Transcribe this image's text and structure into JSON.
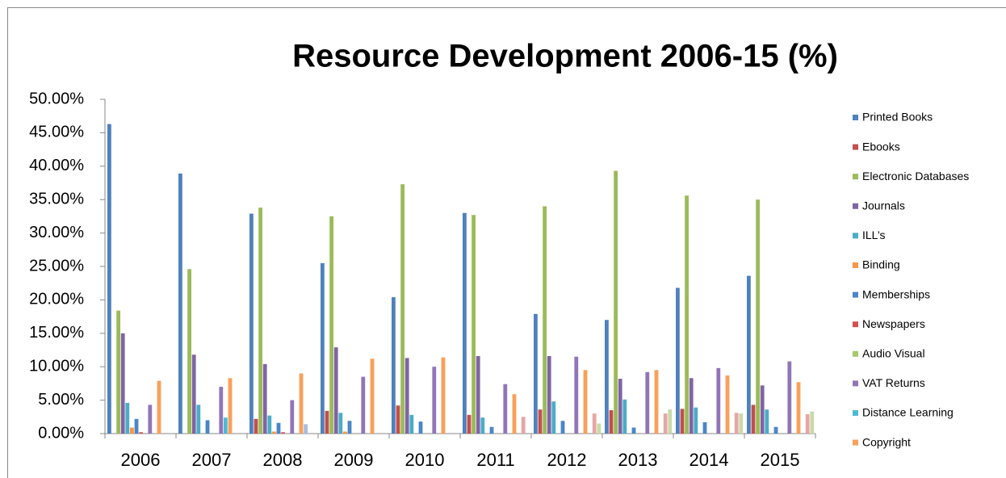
{
  "chart_data": {
    "type": "bar",
    "title": "Resource Development 2006-15 (%)",
    "categories": [
      "2006",
      "2007",
      "2008",
      "2009",
      "2010",
      "2011",
      "2012",
      "2013",
      "2014",
      "2015"
    ],
    "series": [
      {
        "name": "Printed Books",
        "color": "#4f81bd",
        "values": [
          46.3,
          38.9,
          32.9,
          25.5,
          20.4,
          33.0,
          17.9,
          17.0,
          21.8,
          23.6
        ]
      },
      {
        "name": "Ebooks",
        "color": "#c0504d",
        "values": [
          0,
          0,
          2.2,
          3.4,
          4.2,
          2.8,
          3.6,
          3.5,
          3.7,
          4.3
        ]
      },
      {
        "name": "Electronic Databases",
        "color": "#9bbb59",
        "values": [
          18.4,
          24.6,
          33.8,
          32.5,
          37.3,
          32.7,
          34.0,
          39.3,
          35.6,
          35.0
        ]
      },
      {
        "name": "Journals",
        "color": "#8064a2",
        "values": [
          15.0,
          11.8,
          10.4,
          12.9,
          11.3,
          11.6,
          11.6,
          8.2,
          8.3,
          7.2
        ]
      },
      {
        "name": "ILL’s",
        "color": "#4bacc6",
        "values": [
          4.6,
          4.3,
          2.7,
          3.1,
          2.8,
          2.4,
          4.8,
          5.1,
          3.9,
          3.6
        ]
      },
      {
        "name": "Binding",
        "color": "#f79646",
        "values": [
          0.9,
          0,
          0.3,
          0.3,
          0,
          0,
          0,
          0,
          0,
          0
        ]
      },
      {
        "name": "Memberships",
        "color": "#4a86c8",
        "values": [
          2.2,
          2.0,
          1.6,
          1.9,
          1.8,
          1.0,
          1.9,
          0.9,
          1.7,
          1.0
        ]
      },
      {
        "name": "Newspapers",
        "color": "#d0514e",
        "values": [
          0.2,
          0,
          0.2,
          0,
          0,
          0,
          0,
          0,
          0,
          0
        ]
      },
      {
        "name": "Audio Visual",
        "color": "#a5c96b",
        "values": [
          0,
          0,
          0,
          0,
          0,
          0,
          0,
          0,
          0,
          0
        ]
      },
      {
        "name": "VAT Returns",
        "color": "#9076b8",
        "values": [
          4.3,
          7.0,
          5.0,
          8.5,
          10.0,
          7.4,
          11.5,
          9.2,
          9.8,
          10.8
        ]
      },
      {
        "name": "Distance Learning",
        "color": "#4fbad6",
        "values": [
          0,
          2.4,
          0,
          0,
          0,
          0,
          0,
          0,
          0,
          0
        ]
      },
      {
        "name": "Copyright",
        "color": "#f9a05a",
        "values": [
          7.9,
          8.3,
          9.0,
          11.2,
          11.4,
          5.9,
          9.5,
          9.5,
          8.7,
          7.7
        ]
      },
      {
        "color": "#a8bde0",
        "values": [
          0,
          0,
          1.4,
          0,
          0,
          0,
          0,
          0,
          0,
          0
        ]
      },
      {
        "color": "#e6a6a6",
        "values": [
          0,
          0,
          0,
          0,
          0,
          2.5,
          3.0,
          3.0,
          3.1,
          2.9
        ]
      },
      {
        "color": "#c9d9a8",
        "values": [
          0,
          0,
          0,
          0,
          0,
          0,
          1.5,
          3.6,
          3.0,
          3.3
        ]
      }
    ],
    "ylim": [
      0,
      50
    ],
    "yticks": [
      {
        "value": 0,
        "label": "0.00%"
      },
      {
        "value": 5,
        "label": "5.00%"
      },
      {
        "value": 10,
        "label": "10.00%"
      },
      {
        "value": 15,
        "label": "15.00%"
      },
      {
        "value": 20,
        "label": "20.00%"
      },
      {
        "value": 25,
        "label": "25.00%"
      },
      {
        "value": 30,
        "label": "30.00%"
      },
      {
        "value": 35,
        "label": "35.00%"
      },
      {
        "value": 40,
        "label": "40.00%"
      },
      {
        "value": 45,
        "label": "45.00%"
      },
      {
        "value": 50,
        "label": "50.00%"
      }
    ],
    "grid": false,
    "legend": "right"
  }
}
